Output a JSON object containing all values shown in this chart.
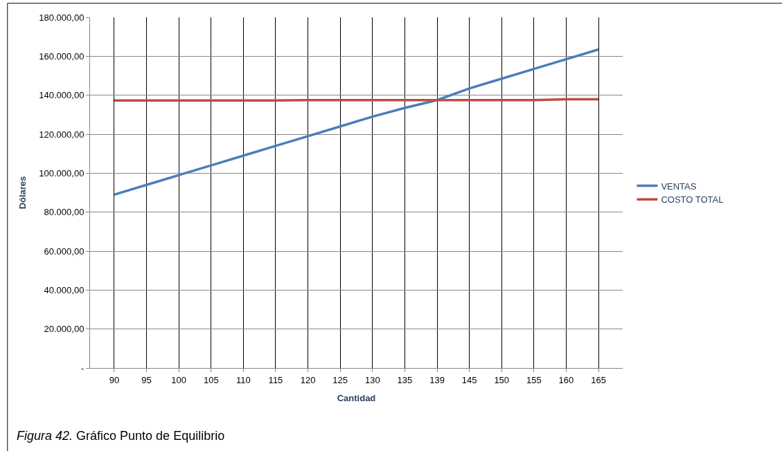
{
  "chart_data": {
    "type": "line",
    "xlabel": "Cantidad",
    "ylabel": "Dólares",
    "categories": [
      "90",
      "95",
      "100",
      "105",
      "110",
      "115",
      "120",
      "125",
      "130",
      "135",
      "139",
      "145",
      "150",
      "155",
      "160",
      "165"
    ],
    "series": [
      {
        "name": "VENTAS",
        "color": "#4a7ebb",
        "values": [
          89000,
          94000,
          99000,
          104000,
          109000,
          114000,
          119000,
          124000,
          129000,
          133500,
          137500,
          143500,
          148500,
          153500,
          158500,
          163500
        ]
      },
      {
        "name": "COSTO TOTAL",
        "color": "#be4b48",
        "values": [
          137300,
          137300,
          137300,
          137300,
          137300,
          137300,
          137500,
          137500,
          137500,
          137500,
          137500,
          137500,
          137500,
          137500,
          137900,
          137900
        ]
      }
    ],
    "ylim": [
      0,
      180000
    ],
    "yticks": [
      {
        "value": 0,
        "label": "-"
      },
      {
        "value": 20000,
        "label": "20.000,00"
      },
      {
        "value": 40000,
        "label": "40.000,00"
      },
      {
        "value": 60000,
        "label": "60.000,00"
      },
      {
        "value": 80000,
        "label": "80.000,00"
      },
      {
        "value": 100000,
        "label": "100.000,00"
      },
      {
        "value": 120000,
        "label": "120.000,00"
      },
      {
        "value": 140000,
        "label": "140.000,00"
      },
      {
        "value": 160000,
        "label": "160.000,00"
      },
      {
        "value": 180000,
        "label": "180.000,00"
      }
    ],
    "grid": true,
    "legend": "right",
    "marker": "none",
    "line_style": "solid",
    "annotations": [
      "Figura 42. Gráfico Punto de Equilibrio"
    ]
  }
}
